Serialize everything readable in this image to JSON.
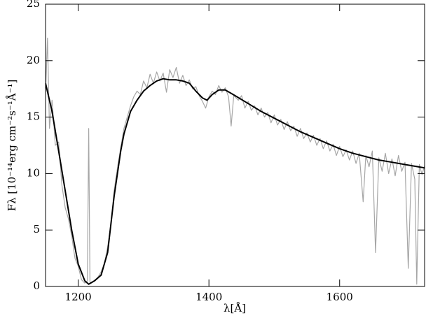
{
  "chart_data": {
    "type": "line",
    "xlabel": "λ[Å]",
    "ylabel": "Fλ [10⁻¹⁴erg cm⁻²s⁻¹Å⁻¹]",
    "xlim": [
      1150,
      1730
    ],
    "xticks": [
      1200,
      1400,
      1600
    ],
    "ylim": [
      0,
      25
    ],
    "yticks": [
      0,
      5,
      10,
      15,
      20,
      25
    ],
    "series": [
      {
        "color": "#a6a6a6",
        "x": [
          1150,
          1153,
          1156,
          1160,
          1165,
          1170,
          1175,
          1180,
          1185,
          1190,
          1195,
          1200,
          1205,
          1210,
          1214,
          1216,
          1218,
          1222,
          1226,
          1230,
          1235,
          1240,
          1245,
          1250,
          1255,
          1260,
          1265,
          1270,
          1275,
          1280,
          1285,
          1290,
          1295,
          1300,
          1305,
          1310,
          1315,
          1320,
          1325,
          1330,
          1335,
          1340,
          1345,
          1350,
          1355,
          1360,
          1365,
          1370,
          1375,
          1380,
          1385,
          1390,
          1395,
          1400,
          1405,
          1410,
          1415,
          1420,
          1425,
          1430,
          1434,
          1438,
          1445,
          1450,
          1455,
          1460,
          1465,
          1470,
          1475,
          1480,
          1485,
          1490,
          1495,
          1500,
          1505,
          1510,
          1515,
          1520,
          1525,
          1530,
          1535,
          1540,
          1545,
          1550,
          1555,
          1560,
          1565,
          1570,
          1575,
          1580,
          1585,
          1590,
          1595,
          1600,
          1605,
          1610,
          1615,
          1620,
          1625,
          1630,
          1636,
          1640,
          1645,
          1650,
          1655,
          1660,
          1665,
          1670,
          1675,
          1680,
          1685,
          1690,
          1695,
          1700,
          1705,
          1710,
          1715,
          1718,
          1722,
          1726,
          1730
        ],
        "values": [
          17,
          22,
          14,
          16.5,
          12.5,
          12.8,
          9,
          7,
          6,
          4.5,
          2.5,
          1.8,
          0.6,
          0.3,
          0.5,
          14,
          0.3,
          0.4,
          0.6,
          0.8,
          1.3,
          2,
          3.5,
          5.5,
          8.5,
          10.5,
          12.3,
          14,
          15,
          16,
          16.8,
          17.3,
          17,
          18.2,
          17.6,
          18.8,
          18,
          19,
          18.2,
          18.9,
          17.2,
          19.2,
          18.5,
          19.4,
          18,
          18.7,
          17.8,
          18.3,
          17.5,
          17.7,
          16.9,
          16.4,
          15.8,
          16.8,
          17.3,
          17,
          17.8,
          17.2,
          17.6,
          16.8,
          14.2,
          16.9,
          16.5,
          16.9,
          15.8,
          16.4,
          15.6,
          16,
          15.2,
          15.8,
          15,
          15.4,
          14.5,
          15.2,
          14.3,
          14.8,
          13.9,
          14.6,
          13.8,
          14.2,
          13.3,
          14,
          13.1,
          13.6,
          12.8,
          13.4,
          12.5,
          13.1,
          12.2,
          12.9,
          12,
          12.6,
          11.6,
          12.4,
          11.5,
          12.1,
          11.2,
          12,
          10.9,
          11.8,
          7.5,
          11.6,
          10.6,
          12,
          3,
          11.4,
          10.2,
          11.8,
          10,
          11.3,
          9.8,
          11.6,
          10.2,
          11,
          1.6,
          10.9,
          9.5,
          0.2,
          10.8,
          9.9,
          10.7
        ]
      },
      {
        "color": "#000000",
        "x": [
          1150,
          1160,
          1170,
          1180,
          1190,
          1200,
          1210,
          1216,
          1225,
          1235,
          1245,
          1255,
          1265,
          1270,
          1280,
          1290,
          1300,
          1310,
          1320,
          1330,
          1340,
          1350,
          1360,
          1370,
          1380,
          1390,
          1397,
          1405,
          1415,
          1425,
          1440,
          1460,
          1480,
          1500,
          1520,
          1540,
          1560,
          1580,
          1600,
          1620,
          1640,
          1660,
          1680,
          1700,
          1730
        ],
        "values": [
          18,
          15.5,
          12,
          8.5,
          5,
          2,
          0.5,
          0.2,
          0.5,
          1,
          3,
          8,
          12,
          13.5,
          15.5,
          16.5,
          17.3,
          17.8,
          18.2,
          18.4,
          18.3,
          18.3,
          18.2,
          18,
          17.3,
          16.7,
          16.5,
          17,
          17.4,
          17.4,
          16.9,
          16.2,
          15.5,
          14.9,
          14.3,
          13.7,
          13.2,
          12.7,
          12.2,
          11.8,
          11.5,
          11.2,
          11,
          10.8,
          10.5
        ]
      }
    ]
  }
}
